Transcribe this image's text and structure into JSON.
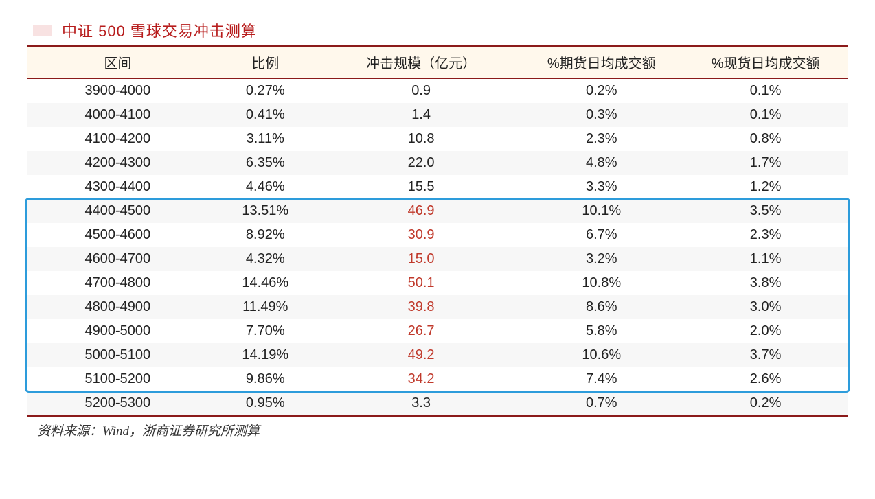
{
  "type": "table",
  "title": "中证 500 雪球交易冲击测算",
  "title_color": "#b71c1c",
  "header_bg": "#fff8ec",
  "rule_color": "#8b1a1a",
  "alt_row_bg": "#f7f7f7",
  "highlight_border": "#2d9cdb",
  "red_value_color": "#c0392b",
  "columns": [
    "区间",
    "比例",
    "冲击规模（亿元）",
    "%期货日均成交额",
    "%现货日均成交额"
  ],
  "highlight_range": {
    "from_row": 5,
    "to_row": 12
  },
  "rows": [
    {
      "range": "3900-4000",
      "ratio": "0.27%",
      "impact": "0.9",
      "impact_red": false,
      "futures": "0.2%",
      "spot": "0.1%",
      "alt": false
    },
    {
      "range": "4000-4100",
      "ratio": "0.41%",
      "impact": "1.4",
      "impact_red": false,
      "futures": "0.3%",
      "spot": "0.1%",
      "alt": true
    },
    {
      "range": "4100-4200",
      "ratio": "3.11%",
      "impact": "10.8",
      "impact_red": false,
      "futures": "2.3%",
      "spot": "0.8%",
      "alt": false
    },
    {
      "range": "4200-4300",
      "ratio": "6.35%",
      "impact": "22.0",
      "impact_red": false,
      "futures": "4.8%",
      "spot": "1.7%",
      "alt": true
    },
    {
      "range": "4300-4400",
      "ratio": "4.46%",
      "impact": "15.5",
      "impact_red": false,
      "futures": "3.3%",
      "spot": "1.2%",
      "alt": false
    },
    {
      "range": "4400-4500",
      "ratio": "13.51%",
      "impact": "46.9",
      "impact_red": true,
      "futures": "10.1%",
      "spot": "3.5%",
      "alt": true
    },
    {
      "range": "4500-4600",
      "ratio": "8.92%",
      "impact": "30.9",
      "impact_red": true,
      "futures": "6.7%",
      "spot": "2.3%",
      "alt": false
    },
    {
      "range": "4600-4700",
      "ratio": "4.32%",
      "impact": "15.0",
      "impact_red": true,
      "futures": "3.2%",
      "spot": "1.1%",
      "alt": true
    },
    {
      "range": "4700-4800",
      "ratio": "14.46%",
      "impact": "50.1",
      "impact_red": true,
      "futures": "10.8%",
      "spot": "3.8%",
      "alt": false
    },
    {
      "range": "4800-4900",
      "ratio": "11.49%",
      "impact": "39.8",
      "impact_red": true,
      "futures": "8.6%",
      "spot": "3.0%",
      "alt": true
    },
    {
      "range": "4900-5000",
      "ratio": "7.70%",
      "impact": "26.7",
      "impact_red": true,
      "futures": "5.8%",
      "spot": "2.0%",
      "alt": false
    },
    {
      "range": "5000-5100",
      "ratio": "14.19%",
      "impact": "49.2",
      "impact_red": true,
      "futures": "10.6%",
      "spot": "3.7%",
      "alt": true
    },
    {
      "range": "5100-5200",
      "ratio": "9.86%",
      "impact": "34.2",
      "impact_red": true,
      "futures": "7.4%",
      "spot": "2.6%",
      "alt": false
    },
    {
      "range": "5200-5300",
      "ratio": "0.95%",
      "impact": "3.3",
      "impact_red": false,
      "futures": "0.7%",
      "spot": "0.2%",
      "alt": true
    }
  ],
  "source_note": "资料来源：Wind，浙商证券研究所测算"
}
